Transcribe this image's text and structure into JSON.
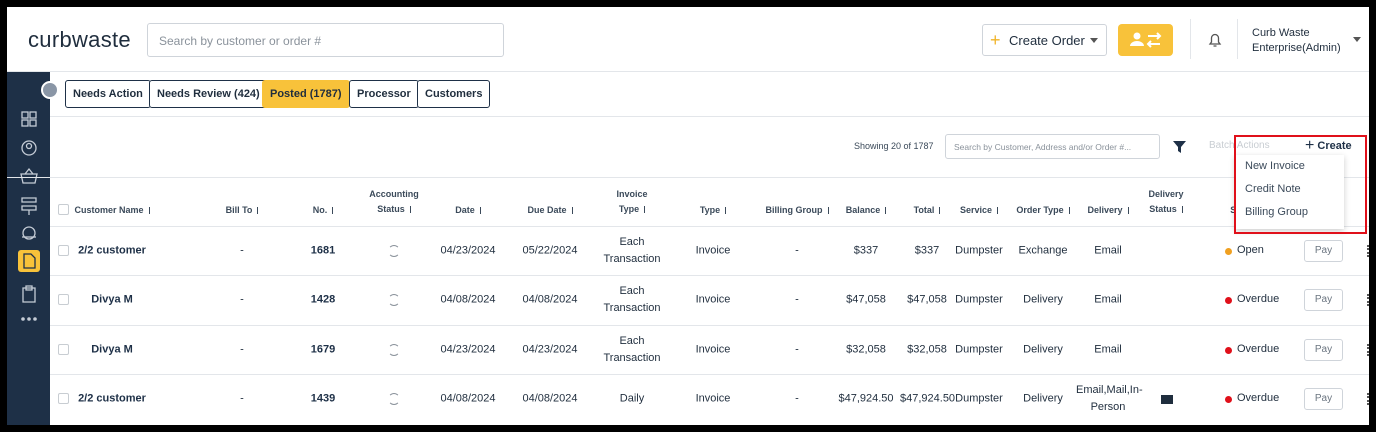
{
  "header": {
    "logo": "curbwaste",
    "search_placeholder": "Search by customer or order #",
    "create_order": "Create Order",
    "user_name": "Curb Waste",
    "user_role": "Enterprise(Admin)"
  },
  "tabs": [
    "Needs Action",
    "Needs Review (424)",
    "Posted (1787)",
    "Processor",
    "Customers"
  ],
  "toolbar": {
    "showing": "Showing 20 of 1787",
    "search_placeholder": "Search by Customer, Address and/or Order #...",
    "batch_actions": "Batch Actions",
    "create": "Create"
  },
  "create_menu": [
    "New Invoice",
    "Credit Note",
    "Billing Group"
  ],
  "table": {
    "columns": [
      "Customer Name",
      "Bill To",
      "No.",
      "Accounting Status",
      "Date",
      "Due Date",
      "Invoice Type",
      "Type",
      "Billing Group",
      "Balance",
      "Total",
      "Service",
      "Order Type",
      "Delivery",
      "Delivery Status",
      "Status"
    ],
    "rows": [
      {
        "customer": "2/2 customer",
        "bill_to": "-",
        "no": "1681",
        "date": "04/23/2024",
        "due_date": "05/22/2024",
        "invoice_type": "Each Transaction",
        "type": "Invoice",
        "billing_group": "-",
        "balance": "$337",
        "total": "$337",
        "service": "Dumpster",
        "order_type": "Exchange",
        "delivery": "Email",
        "status": "Open",
        "action": "Pay"
      },
      {
        "customer": "Divya M",
        "bill_to": "-",
        "no": "1428",
        "date": "04/08/2024",
        "due_date": "04/08/2024",
        "invoice_type": "Each Transaction",
        "type": "Invoice",
        "billing_group": "-",
        "balance": "$47,058",
        "total": "$47,058",
        "service": "Dumpster",
        "order_type": "Delivery",
        "delivery": "Email",
        "status": "Overdue",
        "action": "Pay"
      },
      {
        "customer": "Divya M",
        "bill_to": "-",
        "no": "1679",
        "date": "04/23/2024",
        "due_date": "04/23/2024",
        "invoice_type": "Each Transaction",
        "type": "Invoice",
        "billing_group": "-",
        "balance": "$32,058",
        "total": "$32,058",
        "service": "Dumpster",
        "order_type": "Delivery",
        "delivery": "Email",
        "status": "Overdue",
        "action": "Pay"
      },
      {
        "customer": "2/2 customer",
        "bill_to": "-",
        "no": "1439",
        "date": "04/08/2024",
        "due_date": "04/08/2024",
        "invoice_type": "Daily",
        "type": "Invoice",
        "billing_group": "-",
        "balance": "$47,924.50",
        "total": "$47,924.50",
        "service": "Dumpster",
        "order_type": "Delivery",
        "delivery": "Email,Mail,In-Person",
        "status": "Overdue",
        "action": "Pay"
      }
    ]
  }
}
